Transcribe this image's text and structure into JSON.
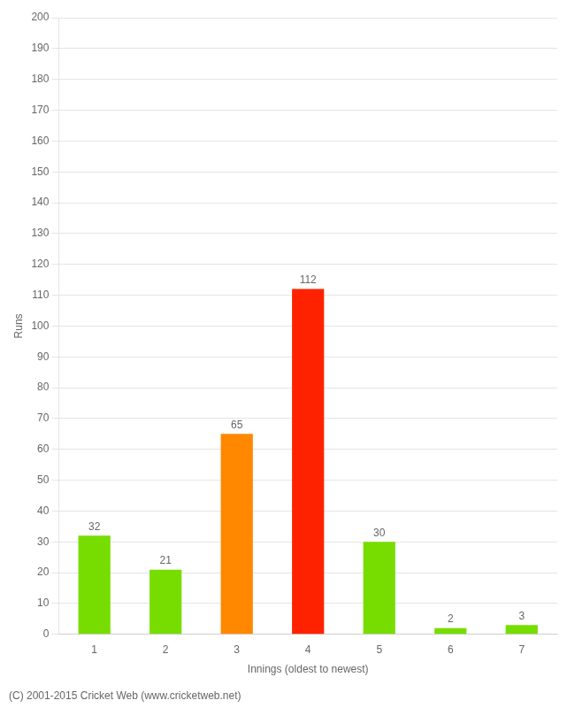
{
  "chart_data": {
    "type": "bar",
    "xlabel": "Innings (oldest to newest)",
    "ylabel": "Runs",
    "categories": [
      "1",
      "2",
      "3",
      "4",
      "5",
      "6",
      "7"
    ],
    "values": [
      32,
      21,
      65,
      112,
      30,
      2,
      3
    ],
    "colors": [
      "#77dd00",
      "#77dd00",
      "#ff8800",
      "#ff2200",
      "#77dd00",
      "#77dd00",
      "#77dd00"
    ],
    "ylim": [
      0,
      200
    ],
    "yticks": [
      0,
      10,
      20,
      30,
      40,
      50,
      60,
      70,
      80,
      90,
      100,
      110,
      120,
      130,
      140,
      150,
      160,
      170,
      180,
      190,
      200
    ],
    "grid": "y",
    "data_labels": true,
    "annotations": [
      "(C) 2001-2015 Cricket Web (www.cricketweb.net)"
    ]
  }
}
